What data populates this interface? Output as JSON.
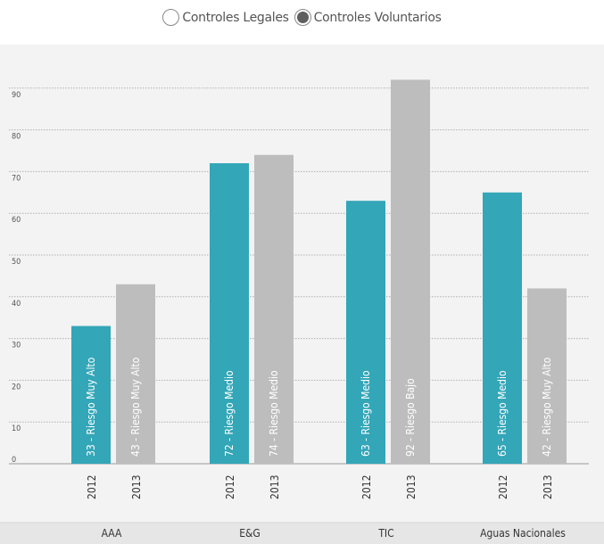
{
  "toggle": {
    "options": [
      {
        "label": "Controles Legales",
        "selected": false
      },
      {
        "label": "Controles Voluntarios",
        "selected": true
      }
    ]
  },
  "chart_data": {
    "type": "bar",
    "categories": [
      "AAA",
      "E&G",
      "TIC",
      "Aguas Nacionales"
    ],
    "sub_categories": [
      "2012",
      "2013"
    ],
    "series": [
      {
        "values": [
          33,
          72,
          63,
          65
        ],
        "labels": [
          "33 - Riesgo Muy Alto",
          "72 - Riesgo Medio",
          "63 - Riesgo Medio",
          "65 - Riesgo Medio"
        ],
        "color": "#33a6b8"
      },
      {
        "values": [
          43,
          74,
          92,
          42
        ],
        "labels": [
          "43 - Riesgo Muy Alto",
          "74 - Riesgo Medio",
          "92 - Riesgo Bajo",
          "42 - Riesgo Muy Alto"
        ],
        "color": "#bdbdbd"
      }
    ],
    "yticks": [
      0,
      10,
      20,
      30,
      40,
      50,
      60,
      70,
      80,
      90
    ],
    "ylim": [
      0,
      95
    ],
    "grid": true,
    "colors": {
      "grid": "#b0b0b0",
      "panel": "#f3f3f3",
      "category_band": "#e6e6e6"
    }
  }
}
